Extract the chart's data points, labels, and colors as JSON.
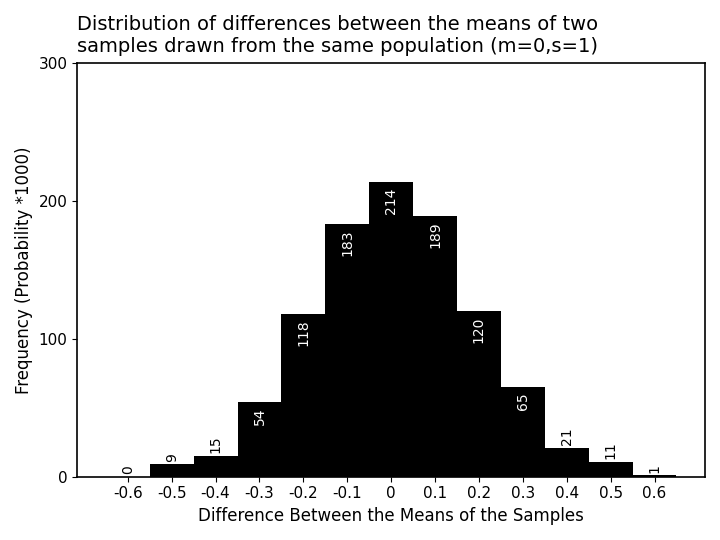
{
  "categories": [
    -0.6,
    -0.5,
    -0.4,
    -0.3,
    -0.2,
    -0.1,
    0.0,
    0.1,
    0.2,
    0.3,
    0.4,
    0.5,
    0.6
  ],
  "values": [
    0,
    9,
    15,
    54,
    118,
    183,
    214,
    189,
    120,
    65,
    21,
    11,
    1
  ],
  "bar_color": "#000000",
  "bar_width": 0.1,
  "title_line1": "Distribution of differences between the means of two",
  "title_line2": "samples drawn from the same population (m=0,s=1)",
  "xlabel": "Difference Between the Means of the Samples",
  "ylabel": "Frequency (Probability *1000)",
  "ylim": [
    0,
    300
  ],
  "yticks": [
    0,
    100,
    200,
    300
  ],
  "xticks": [
    -0.6,
    -0.5,
    -0.4,
    -0.3,
    -0.2,
    -0.1,
    0.0,
    0.1,
    0.2,
    0.3,
    0.4,
    0.5,
    0.6
  ],
  "xticklabels": [
    "-0.6",
    "-0.5",
    "-0.4",
    "-0.3",
    "-0.2",
    "-0.1",
    "0",
    "0.1",
    "0.2",
    "0.3",
    "0.4",
    "0.5",
    "0.6"
  ],
  "title_fontsize": 14,
  "label_fontsize": 12,
  "tick_fontsize": 11,
  "annotation_fontsize": 10,
  "background_color": "#ffffff",
  "small_bar_threshold": 30
}
